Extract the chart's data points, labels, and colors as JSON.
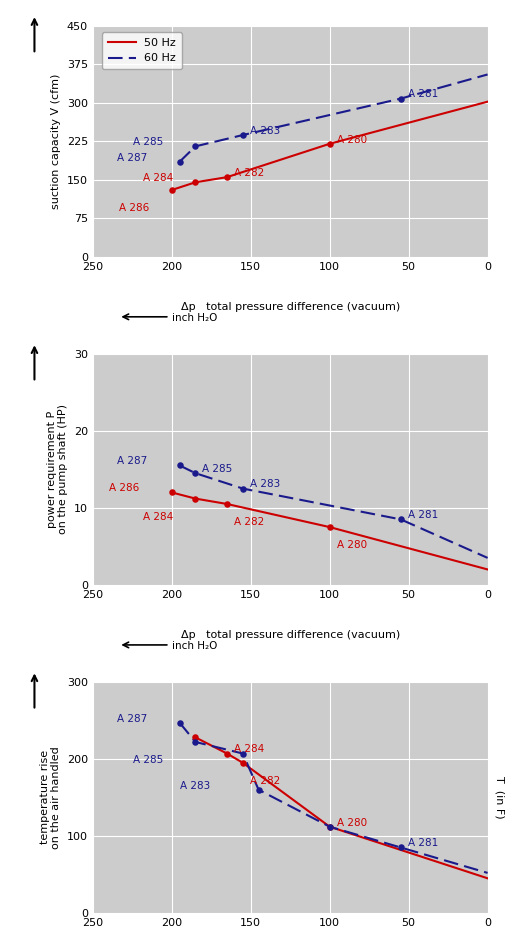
{
  "chart1": {
    "ylim": [
      0,
      450
    ],
    "yticks": [
      0,
      75,
      150,
      225,
      300,
      375,
      450
    ],
    "red_x": [
      200,
      185,
      165,
      100
    ],
    "red_y": [
      130,
      145,
      155,
      220
    ],
    "red_line_x": [
      200,
      185,
      165,
      100,
      0
    ],
    "red_line_y": [
      130,
      145,
      155,
      220,
      302
    ],
    "blue_x": [
      195,
      185,
      155,
      55
    ],
    "blue_y": [
      185,
      215,
      237,
      308
    ],
    "blue_line_x": [
      195,
      185,
      155,
      55,
      0
    ],
    "blue_line_y": [
      185,
      215,
      237,
      308,
      355
    ],
    "labels": [
      [
        "A 286",
        200,
        130,
        "red",
        -38,
        -13
      ],
      [
        "A 284",
        185,
        145,
        "red",
        -38,
        3
      ],
      [
        "A 282",
        165,
        155,
        "red",
        5,
        3
      ],
      [
        "A 280",
        100,
        220,
        "red",
        5,
        3
      ],
      [
        "A 287",
        195,
        185,
        "blue",
        -45,
        3
      ],
      [
        "A 285",
        185,
        215,
        "blue",
        -45,
        3
      ],
      [
        "A 283",
        155,
        237,
        "blue",
        5,
        3
      ],
      [
        "A 281",
        55,
        308,
        "blue",
        5,
        3
      ]
    ],
    "ylabel": "suction capacity V (cfm)"
  },
  "chart2": {
    "ylim": [
      0.0,
      30.0
    ],
    "yticks": [
      0.0,
      10.0,
      20.0,
      30.0
    ],
    "red_x": [
      200,
      185,
      165,
      100
    ],
    "red_y": [
      12.0,
      11.2,
      10.5,
      7.5
    ],
    "red_line_x": [
      200,
      185,
      165,
      100,
      0
    ],
    "red_line_y": [
      12.0,
      11.2,
      10.5,
      7.5,
      2.0
    ],
    "blue_x": [
      195,
      185,
      155,
      55
    ],
    "blue_y": [
      15.5,
      14.5,
      12.5,
      8.5
    ],
    "blue_line_x": [
      195,
      185,
      155,
      55,
      0
    ],
    "blue_line_y": [
      15.5,
      14.5,
      12.5,
      8.5,
      3.5
    ],
    "labels": [
      [
        "A 286",
        200,
        12.0,
        "red",
        -45,
        3
      ],
      [
        "A 284",
        185,
        11.2,
        "red",
        -38,
        -13
      ],
      [
        "A 282",
        165,
        10.5,
        "red",
        5,
        -13
      ],
      [
        "A 280",
        100,
        7.5,
        "red",
        5,
        -13
      ],
      [
        "A 287",
        195,
        15.5,
        "blue",
        -45,
        3
      ],
      [
        "A 285",
        185,
        14.5,
        "blue",
        5,
        3
      ],
      [
        "A 283",
        155,
        12.5,
        "blue",
        5,
        3
      ],
      [
        "A 281",
        55,
        8.5,
        "blue",
        5,
        3
      ]
    ],
    "ylabel": "power requirement P\non the pump shaft (HP)"
  },
  "chart3": {
    "ylim": [
      0,
      300
    ],
    "yticks": [
      0,
      100,
      200,
      300
    ],
    "red_x": [
      185,
      165,
      155,
      100
    ],
    "red_y": [
      228,
      207,
      195,
      112
    ],
    "red_line_x": [
      185,
      165,
      155,
      100,
      0
    ],
    "red_line_y": [
      228,
      207,
      195,
      112,
      45
    ],
    "blue_x": [
      195,
      185,
      155,
      145,
      100,
      55
    ],
    "blue_y": [
      247,
      222,
      207,
      160,
      112,
      85
    ],
    "blue_line_x": [
      195,
      185,
      155,
      145,
      100,
      55,
      0
    ],
    "blue_line_y": [
      247,
      222,
      207,
      160,
      112,
      85,
      52
    ],
    "labels": [
      [
        "A 284",
        165,
        207,
        "red",
        5,
        3
      ],
      [
        "A 282",
        155,
        195,
        "red",
        5,
        -13
      ],
      [
        "A 280",
        100,
        112,
        "red",
        5,
        3
      ],
      [
        "A 287",
        195,
        247,
        "blue",
        -45,
        3
      ],
      [
        "A 285",
        185,
        222,
        "blue",
        -45,
        -13
      ],
      [
        "A 283",
        155,
        160,
        "blue",
        -45,
        3
      ],
      [
        "A 281",
        55,
        85,
        "blue",
        5,
        3
      ]
    ],
    "ylabel": "temperature rise\non the air handled",
    "ylabel_right": "T  (in F)"
  },
  "bg_color": "#cccccc",
  "red_color": "#cc0000",
  "blue_color": "#1a1a8c",
  "xlim": [
    250,
    0
  ],
  "xticks": [
    250,
    200,
    150,
    100,
    50,
    0
  ],
  "xlabel": "Δp   total pressure difference (vacuum)",
  "arrow_label": "inch H₂O"
}
